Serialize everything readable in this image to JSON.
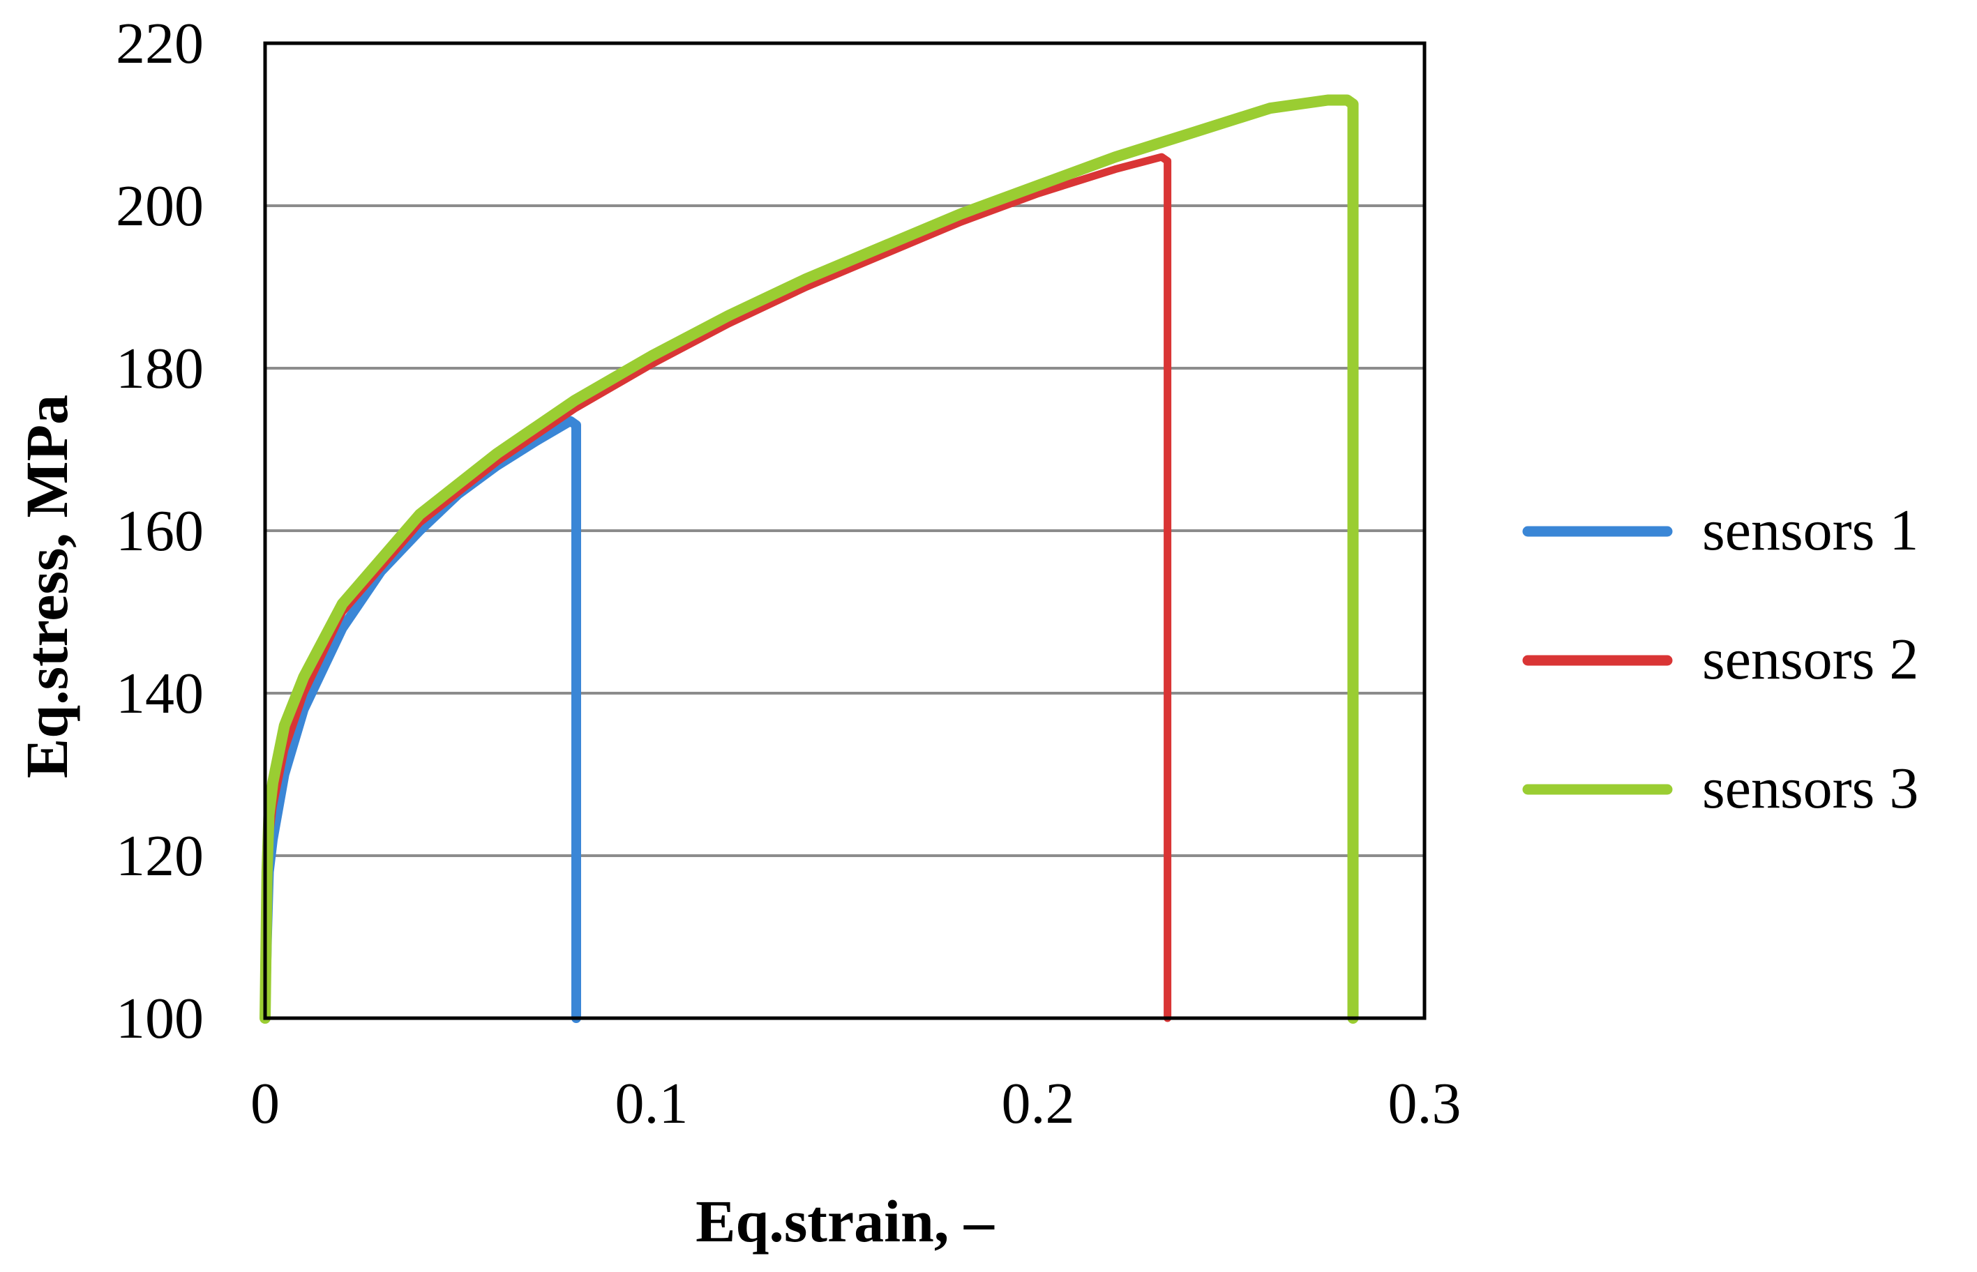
{
  "chart_data": {
    "type": "line",
    "title": "",
    "xlabel": "Eq.strain,  –",
    "ylabel": "Eq.stress,  MPa",
    "xlim": [
      0,
      0.3
    ],
    "ylim": [
      100,
      220
    ],
    "xticks": [
      0,
      0.1,
      0.2,
      0.3
    ],
    "xtick_labels": [
      "0",
      "0.1",
      "0.2",
      "0.3"
    ],
    "yticks": [
      100,
      120,
      140,
      160,
      180,
      200,
      220
    ],
    "ytick_labels": [
      "100",
      "120",
      "140",
      "160",
      "180",
      "200",
      "220"
    ],
    "grid": "horizontal",
    "legend_position": "right",
    "series": [
      {
        "name": "sensors 1",
        "color": "#3a86d6",
        "x": [
          0,
          0.0005,
          0.001,
          0.002,
          0.005,
          0.01,
          0.02,
          0.03,
          0.04,
          0.05,
          0.06,
          0.07,
          0.079,
          0.0805,
          0.0805
        ],
        "y": [
          100,
          110,
          118,
          122,
          130,
          138,
          148,
          155,
          160,
          164.5,
          168,
          171,
          173.5,
          173,
          100
        ]
      },
      {
        "name": "sensors 2",
        "color": "#d93535",
        "x": [
          0,
          0.0005,
          0.001,
          0.002,
          0.005,
          0.01,
          0.02,
          0.04,
          0.06,
          0.08,
          0.1,
          0.12,
          0.14,
          0.16,
          0.18,
          0.2,
          0.22,
          0.232,
          0.2335,
          0.2335
        ],
        "y": [
          100,
          115,
          122,
          126,
          133,
          140,
          150,
          161,
          168.5,
          175,
          180.5,
          185.5,
          190,
          194,
          198,
          201.5,
          204.5,
          206,
          205.5,
          100
        ]
      },
      {
        "name": "sensors 3",
        "color": "#9acd32",
        "x": [
          0,
          0.0005,
          0.001,
          0.002,
          0.005,
          0.01,
          0.02,
          0.04,
          0.06,
          0.08,
          0.1,
          0.12,
          0.14,
          0.16,
          0.18,
          0.2,
          0.22,
          0.24,
          0.26,
          0.275,
          0.28,
          0.2815,
          0.2815
        ],
        "y": [
          100,
          118,
          125,
          129,
          136,
          142,
          151,
          162,
          169.5,
          176,
          181.5,
          186.5,
          191,
          195,
          199,
          202.5,
          206,
          209,
          212,
          213,
          213,
          212.5,
          100
        ]
      }
    ]
  }
}
